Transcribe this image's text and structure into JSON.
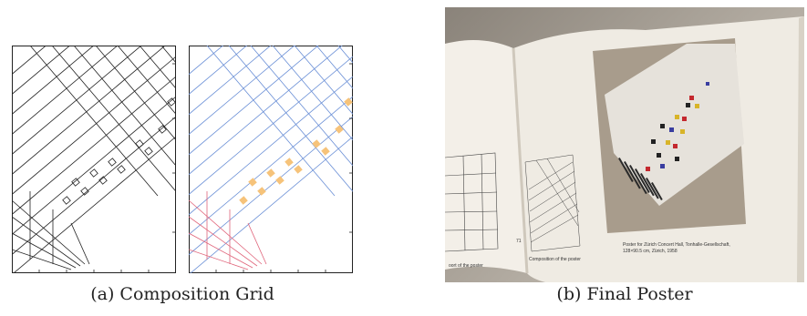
{
  "figure": {
    "panel_a": {
      "label": "(a)",
      "caption": "Composition Grid"
    },
    "panel_b": {
      "label": "(b)",
      "caption": "Final Poster",
      "book_texts": {
        "left_page_caption": "oort of the poster",
        "page_number": "71",
        "composition_caption": "Composition of the poster",
        "poster_caption_line1": "Poster for Zürich Concert Hall, Tonhalle-Gesellschaft,",
        "poster_caption_line2": "128×90.5 cm, Zürich, 1958"
      }
    },
    "colors": {
      "grid_black": "#222222",
      "grid_blue": "#6a8fd6",
      "grid_red": "#e0647a",
      "highlight_orange": "#f6c37a"
    }
  }
}
